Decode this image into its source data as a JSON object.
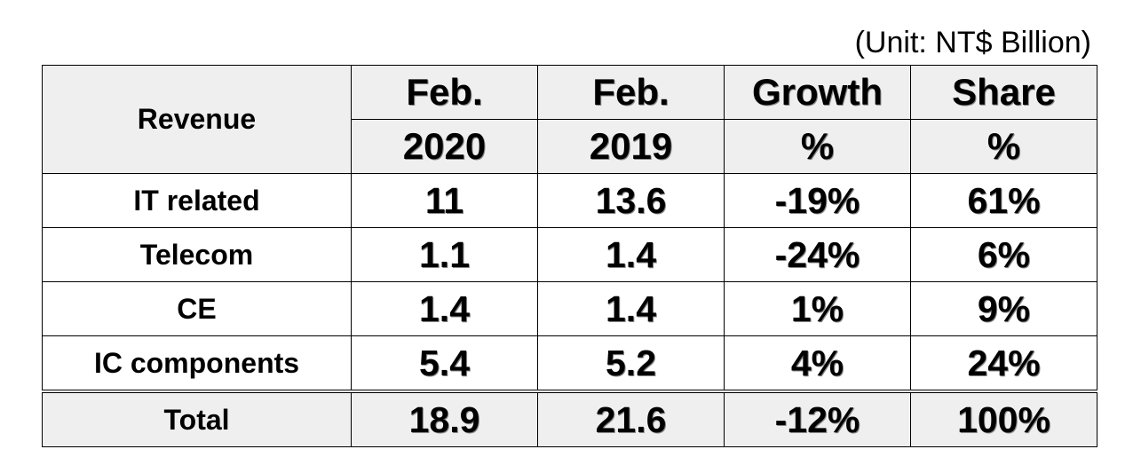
{
  "unit_note": "(Unit: NT$ Billion)",
  "chart_data": {
    "type": "table",
    "title": "",
    "header": {
      "label": "Revenue",
      "columns": [
        {
          "top": "Feb.",
          "bottom": "2020"
        },
        {
          "top": "Feb.",
          "bottom": "2019"
        },
        {
          "top": "Growth",
          "bottom": "%"
        },
        {
          "top": "Share",
          "bottom": "%"
        }
      ]
    },
    "rows": [
      {
        "label": "IT related",
        "values": [
          "11",
          "13.6",
          "-19%",
          "61%"
        ]
      },
      {
        "label": "Telecom",
        "values": [
          "1.1",
          "1.4",
          "-24%",
          "6%"
        ]
      },
      {
        "label": "CE",
        "values": [
          "1.4",
          "1.4",
          "1%",
          "9%"
        ]
      },
      {
        "label": "IC components",
        "values": [
          "5.4",
          "5.2",
          "4%",
          "24%"
        ]
      }
    ],
    "total": {
      "label": "Total",
      "values": [
        "18.9",
        "21.6",
        "-12%",
        "100%"
      ]
    }
  }
}
